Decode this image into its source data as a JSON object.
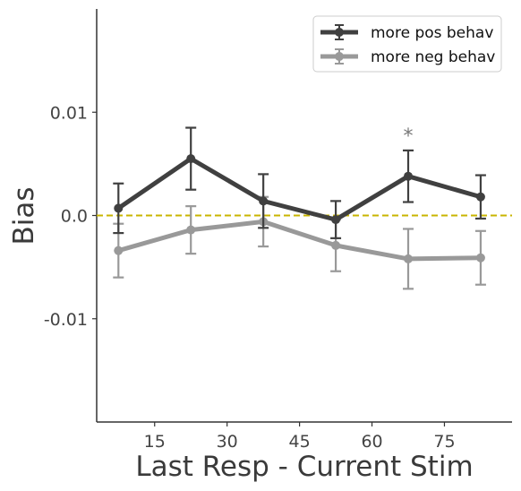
{
  "chart_data": {
    "type": "line",
    "xlabel": "Last Resp - Current Stim",
    "ylabel": "Bias",
    "xlim": [
      3,
      89
    ],
    "ylim": [
      -0.02,
      0.02
    ],
    "xticks": [
      15,
      30,
      45,
      60,
      75
    ],
    "xtick_labels": [
      "15",
      "30",
      "45",
      "60",
      "75"
    ],
    "yticks": [
      -0.01,
      0.0,
      0.01
    ],
    "ytick_labels": [
      "-0.01",
      "0.0",
      "0.01"
    ],
    "x": [
      7.5,
      22.5,
      37.5,
      52.5,
      67.5,
      82.5
    ],
    "reference_line": {
      "y": 0.0,
      "style": "dashed",
      "color": "#c8b400"
    },
    "legend_position": "top-right",
    "series": [
      {
        "name": "more pos behav",
        "color": "#404040",
        "values": [
          0.0007,
          0.0055,
          0.0014,
          -0.0004,
          0.0038,
          0.0018
        ],
        "errors": [
          0.0024,
          0.003,
          0.0026,
          0.0018,
          0.0025,
          0.0021
        ]
      },
      {
        "name": "more neg behav",
        "color": "#999999",
        "values": [
          -0.0034,
          -0.0014,
          -0.0006,
          -0.0029,
          -0.0042,
          -0.0041
        ],
        "errors": [
          0.0026,
          0.0023,
          0.0024,
          0.0025,
          0.0029,
          0.0026
        ]
      }
    ],
    "annotations": [
      {
        "text": "*",
        "x": 67.5,
        "y": 0.0083
      }
    ]
  }
}
